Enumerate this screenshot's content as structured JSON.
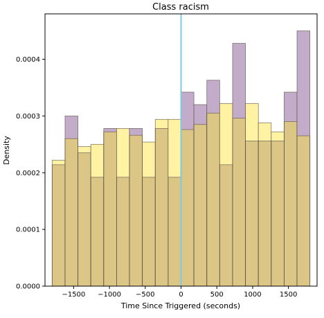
{
  "chart_data": {
    "type": "bar",
    "title": "Class racism",
    "xlabel": "Time Since Triggered (seconds)",
    "ylabel": "Density",
    "xlim": [
      -1900,
      1900
    ],
    "ylim": [
      0,
      0.00048
    ],
    "bin_edges": [
      -1800,
      -1620,
      -1440,
      -1260,
      -1080,
      -900,
      -720,
      -540,
      -360,
      -180,
      0,
      180,
      360,
      540,
      720,
      900,
      1080,
      1260,
      1440,
      1620,
      1800
    ],
    "series": [
      {
        "color": "#c3acca",
        "values": [
          0.000214,
          0.0003,
          0.000235,
          0.000192,
          0.000278,
          0.000192,
          0.000278,
          0.000192,
          0.000278,
          0.000192,
          0.000342,
          0.00032,
          0.000363,
          0.000214,
          0.000428,
          0.000256,
          0.000256,
          0.000256,
          0.000342,
          0.00045
        ]
      },
      {
        "color": "#fff3a3",
        "values": [
          0.000222,
          0.00026,
          0.000246,
          0.00025,
          0.000272,
          0.000278,
          0.000266,
          0.000254,
          0.000294,
          0.000294,
          0.000276,
          0.000285,
          0.000305,
          0.000322,
          0.000296,
          0.000322,
          0.000288,
          0.000272,
          0.00029,
          0.000265
        ]
      }
    ],
    "overlap_color": "#dbc686",
    "vline": {
      "x": 0,
      "color": "#7ec8e3"
    },
    "xticks": [
      -1500,
      -1000,
      -500,
      0,
      500,
      1000,
      1500
    ],
    "xtick_labels": [
      "−1500",
      "−1000",
      "−500",
      "0",
      "500",
      "1000",
      "1500"
    ],
    "yticks": [
      0,
      0.0001,
      0.0002,
      0.0003,
      0.0004
    ],
    "ytick_labels": [
      "0.0000",
      "0.0001",
      "0.0002",
      "0.0003",
      "0.0004"
    ],
    "grid": false,
    "legend": "none"
  }
}
